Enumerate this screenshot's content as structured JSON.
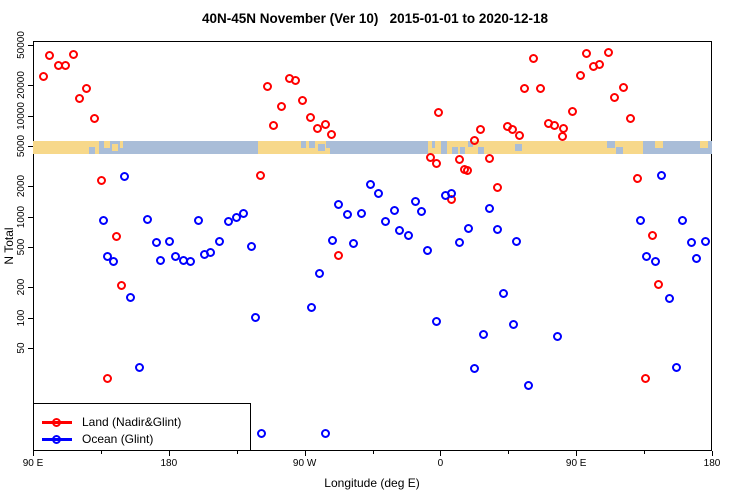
{
  "title": "40N-45N November (Ver 10)   2015-01-01 to 2020-12-18",
  "y_axis": {
    "label": "N Total",
    "ticks": [
      {
        "value": 50000,
        "label": "50000"
      },
      {
        "value": 20000,
        "label": "20000"
      },
      {
        "value": 10000,
        "label": "10000"
      },
      {
        "value": 5000,
        "label": "5000"
      },
      {
        "value": 2000,
        "label": "2000"
      },
      {
        "value": 1000,
        "label": "1000"
      },
      {
        "value": 500,
        "label": "500"
      },
      {
        "value": 200,
        "label": "200"
      },
      {
        "value": 100,
        "label": "100"
      },
      {
        "value": 50,
        "label": "50"
      }
    ]
  },
  "x_axis": {
    "label": "Longitude (deg E)",
    "major_ticks": [
      {
        "deg": 90,
        "label": "90 E"
      },
      {
        "deg": 180,
        "label": "180"
      },
      {
        "deg": 270,
        "label": "90 W"
      },
      {
        "deg": 360,
        "label": "0"
      },
      {
        "deg": 450,
        "label": "90 E"
      },
      {
        "deg": 540,
        "label": "180"
      }
    ],
    "minor_ticks": [
      135,
      225,
      315,
      405,
      495
    ]
  },
  "legend": {
    "items": [
      {
        "label": "Land (Nadir&Glint)",
        "color": "#ff0000"
      },
      {
        "label": "Ocean (Glint)",
        "color": "#0000ff"
      }
    ]
  },
  "map_strip": {
    "ocean_color": "#a9bdd8",
    "land_color": "#f7d88a",
    "land_segments": [
      {
        "from": 90,
        "to": 133.7,
        "band": "full"
      },
      {
        "from": 137.1,
        "to": 141.0,
        "band": "top"
      },
      {
        "from": 142.4,
        "to": 146.3,
        "band": "middle"
      },
      {
        "from": 147.7,
        "to": 149.7,
        "band": "top"
      },
      {
        "from": 239.1,
        "to": 286.8,
        "band": "full"
      },
      {
        "from": 351.8,
        "to": 360.4,
        "band": "full"
      },
      {
        "from": 364.4,
        "to": 378.3,
        "band": "full"
      },
      {
        "from": 378.3,
        "to": 381.6,
        "band": "bottom"
      },
      {
        "from": 381.6,
        "to": 494.3,
        "band": "full"
      },
      {
        "from": 502.2,
        "to": 507.5,
        "band": "top"
      },
      {
        "from": 532.0,
        "to": 537.3,
        "band": "top"
      }
    ],
    "ocean_overlays": [
      {
        "from": 127.1,
        "to": 131.1,
        "band": "bottom"
      },
      {
        "from": 267.6,
        "to": 270.9,
        "band": "top"
      },
      {
        "from": 272.9,
        "to": 276.9,
        "band": "top"
      },
      {
        "from": 278.9,
        "to": 283.5,
        "band": "middle"
      },
      {
        "from": 284.2,
        "to": 286.8,
        "band": "top"
      },
      {
        "from": 354.4,
        "to": 356.4,
        "band": "top"
      },
      {
        "from": 360.4,
        "to": 364.4,
        "band": "full"
      },
      {
        "from": 367.7,
        "to": 371.7,
        "band": "bottom"
      },
      {
        "from": 373.0,
        "to": 376.3,
        "band": "bottom"
      },
      {
        "from": 384.9,
        "to": 388.9,
        "band": "bottom"
      },
      {
        "from": 409.4,
        "to": 414.1,
        "band": "middle"
      },
      {
        "from": 470.4,
        "to": 475.7,
        "band": "top"
      },
      {
        "from": 476.4,
        "to": 481.0,
        "band": "bottom"
      }
    ]
  },
  "chart_data": {
    "type": "scatter",
    "title": "40N-45N November (Ver 10)   2015-01-01 to 2020-12-18",
    "xlabel": "Longitude (deg E)",
    "ylabel": "N Total",
    "y_scale": "log",
    "y_range": [
      4.8,
      55000
    ],
    "x_axis_note": "wrapped longitude axis: 90E to 180 to 90W to 0 to 90E to 180; stored as continuous 90..540 deg E",
    "x_range": [
      90,
      540
    ],
    "legend_position": "bottom-left",
    "series": [
      {
        "name": "Land (Nadir&Glint)",
        "color": "#ff0000",
        "points": [
          [
            101,
            38700
          ],
          [
            117,
            40200
          ],
          [
            107,
            30800
          ],
          [
            112,
            31200
          ],
          [
            97,
            24000
          ],
          [
            126,
            18400
          ],
          [
            121,
            14700
          ],
          [
            131,
            9330
          ],
          [
            246,
            19100
          ],
          [
            260,
            23200
          ],
          [
            264,
            21900
          ],
          [
            255,
            12100
          ],
          [
            269,
            14100
          ],
          [
            274,
            9480
          ],
          [
            250,
            7850
          ],
          [
            279,
            7380
          ],
          [
            284,
            8150
          ],
          [
            288,
            6400
          ],
          [
            136,
            2270
          ],
          [
            241,
            2530
          ],
          [
            146,
            625
          ],
          [
            293,
            408
          ],
          [
            149,
            206
          ],
          [
            140,
            25
          ],
          [
            359,
            10600
          ],
          [
            422,
            36400
          ],
          [
            457,
            40400
          ],
          [
            472,
            41500
          ],
          [
            462,
            30100
          ],
          [
            466,
            31900
          ],
          [
            453,
            24700
          ],
          [
            416,
            18400
          ],
          [
            427,
            18500
          ],
          [
            482,
            19000
          ],
          [
            476,
            14900
          ],
          [
            448,
            10900
          ],
          [
            486,
            9270
          ],
          [
            432,
            8220
          ],
          [
            436,
            7960
          ],
          [
            442,
            7380
          ],
          [
            387,
            7260
          ],
          [
            405,
            7730
          ],
          [
            408,
            7260
          ],
          [
            413,
            6340
          ],
          [
            383,
            5570
          ],
          [
            441,
            6150
          ],
          [
            354,
            3810
          ],
          [
            358,
            3360
          ],
          [
            373,
            3640
          ],
          [
            376,
            2930
          ],
          [
            378,
            2830
          ],
          [
            393,
            3730
          ],
          [
            398,
            1910
          ],
          [
            368,
            1470
          ],
          [
            491,
            2340
          ],
          [
            501,
            644
          ],
          [
            505,
            211
          ],
          [
            496,
            25
          ]
        ]
      },
      {
        "name": "Ocean (Glint)",
        "color": "#0000ff",
        "points": [
          [
            151,
            2490
          ],
          [
            137,
            913
          ],
          [
            166,
            925
          ],
          [
            200,
            906
          ],
          [
            220,
            880
          ],
          [
            225,
            963
          ],
          [
            230,
            1064
          ],
          [
            172,
            553
          ],
          [
            181,
            565
          ],
          [
            214,
            565
          ],
          [
            235,
            497
          ],
          [
            140,
            396
          ],
          [
            144,
            352
          ],
          [
            175,
            366
          ],
          [
            185,
            401
          ],
          [
            190,
            366
          ],
          [
            195,
            358
          ],
          [
            204,
            418
          ],
          [
            208,
            434
          ],
          [
            293,
            1306
          ],
          [
            299,
            1040
          ],
          [
            308,
            1064
          ],
          [
            314,
            2060
          ],
          [
            289,
            578
          ],
          [
            303,
            536
          ],
          [
            155,
            157
          ],
          [
            161,
            32
          ],
          [
            280,
            271
          ],
          [
            275,
            124
          ],
          [
            238,
            99
          ],
          [
            242,
            7
          ],
          [
            284,
            7
          ],
          [
            319,
            1667
          ],
          [
            344,
            1390
          ],
          [
            348,
            1121
          ],
          [
            330,
            1139
          ],
          [
            324,
            880
          ],
          [
            333,
            727
          ],
          [
            339,
            649
          ],
          [
            364,
            1614
          ],
          [
            368,
            1667
          ],
          [
            352,
            461
          ],
          [
            373,
            546
          ],
          [
            379,
            755
          ],
          [
            393,
            1192
          ],
          [
            398,
            738
          ],
          [
            411,
            565
          ],
          [
            507,
            2547
          ],
          [
            493,
            913
          ],
          [
            521,
            913
          ],
          [
            527,
            546
          ],
          [
            536,
            565
          ],
          [
            497,
            396
          ],
          [
            503,
            352
          ],
          [
            530,
            381
          ],
          [
            402,
            171
          ],
          [
            358,
            90
          ],
          [
            389,
            67
          ],
          [
            409,
            85
          ],
          [
            438,
            64
          ],
          [
            383,
            31
          ],
          [
            419,
            21
          ],
          [
            512,
            152
          ],
          [
            517,
            32
          ]
        ]
      }
    ]
  }
}
